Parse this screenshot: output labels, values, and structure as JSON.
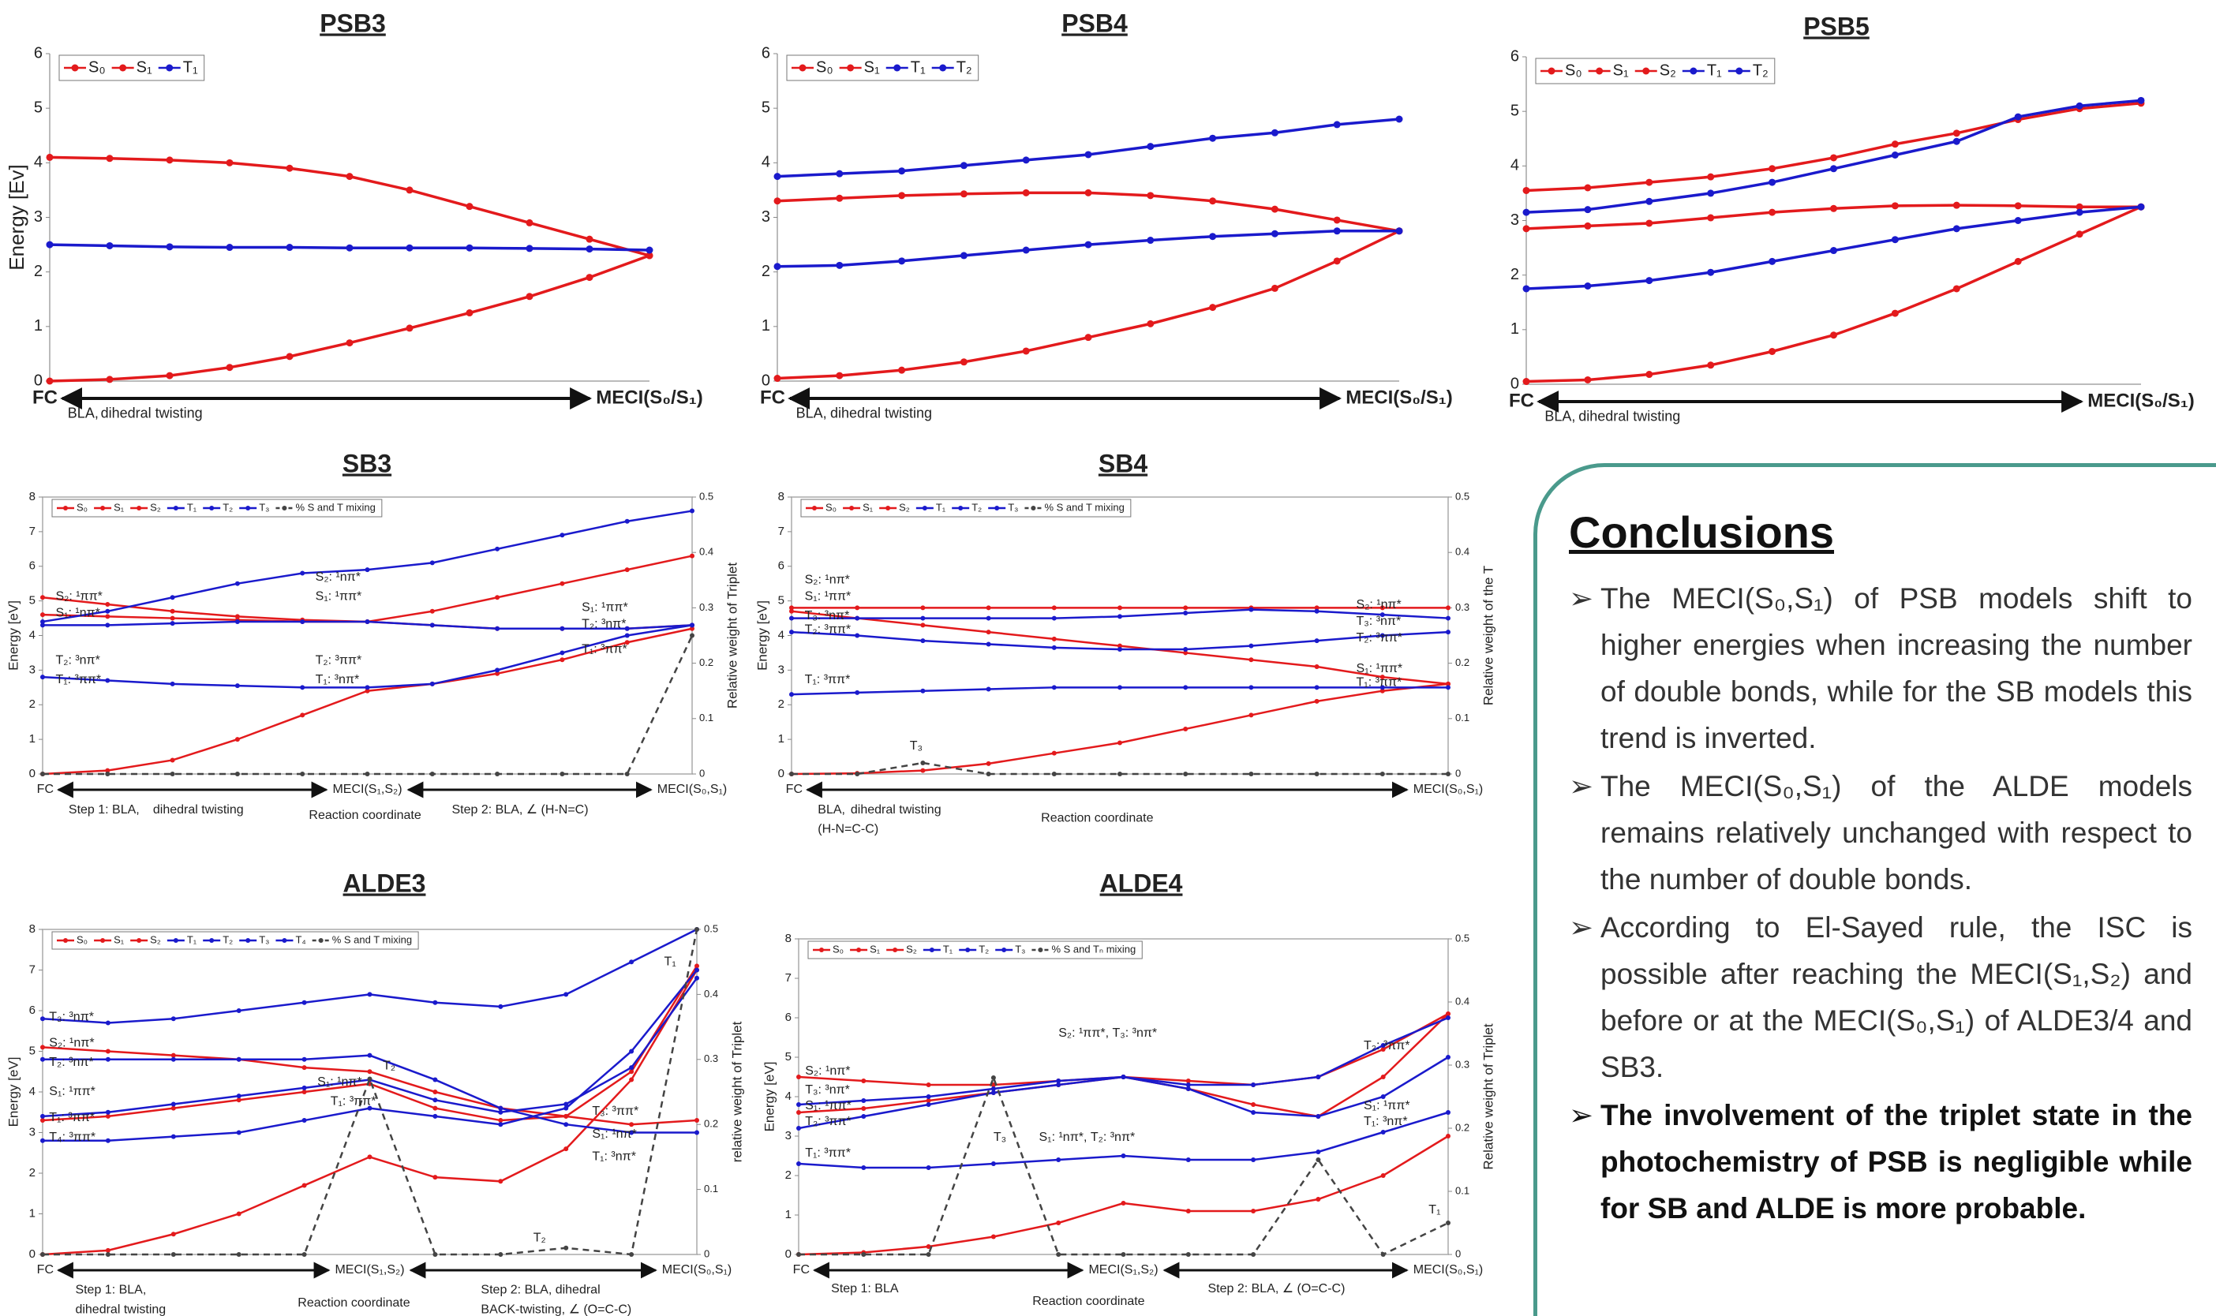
{
  "chart_data": [
    {
      "type": "line",
      "title": "PSB3",
      "y_label": "Energy [Ev]",
      "categories": [
        "FC",
        null,
        null,
        null,
        null,
        null,
        null,
        null,
        null,
        null,
        "MECI(S₀/S₁)"
      ],
      "ylim": [
        0,
        6
      ],
      "yticks": [
        0,
        1,
        2,
        3,
        4,
        5,
        6
      ],
      "series": [
        {
          "name": "S₀",
          "color": "#e31a1c",
          "values": [
            0,
            0.03,
            0.1,
            0.25,
            0.45,
            0.7,
            0.97,
            1.25,
            1.55,
            1.9,
            2.3
          ]
        },
        {
          "name": "S₁",
          "color": "#e31a1c",
          "values": [
            4.1,
            4.08,
            4.05,
            4.0,
            3.9,
            3.75,
            3.5,
            3.2,
            2.9,
            2.6,
            2.3
          ]
        },
        {
          "name": "T₁",
          "color": "#1a1acc",
          "values": [
            2.5,
            2.48,
            2.46,
            2.45,
            2.45,
            2.44,
            2.44,
            2.44,
            2.43,
            2.42,
            2.4
          ]
        }
      ],
      "annotations": [
        "BLA,",
        "dihedral twisting"
      ]
    },
    {
      "type": "line",
      "title": "PSB4",
      "categories": [
        "FC",
        null,
        null,
        null,
        null,
        null,
        null,
        null,
        null,
        null,
        "MECI(S₀/S₁)"
      ],
      "ylim": [
        0,
        6
      ],
      "yticks": [
        0,
        1,
        2,
        3,
        4,
        5,
        6
      ],
      "series": [
        {
          "name": "S₀",
          "color": "#e31a1c",
          "values": [
            0.05,
            0.1,
            0.2,
            0.35,
            0.55,
            0.8,
            1.05,
            1.35,
            1.7,
            2.2,
            2.75
          ]
        },
        {
          "name": "S₁",
          "color": "#e31a1c",
          "values": [
            3.3,
            3.35,
            3.4,
            3.43,
            3.45,
            3.45,
            3.4,
            3.3,
            3.15,
            2.95,
            2.75
          ]
        },
        {
          "name": "T₁",
          "color": "#1a1acc",
          "values": [
            2.1,
            2.12,
            2.2,
            2.3,
            2.4,
            2.5,
            2.58,
            2.65,
            2.7,
            2.75,
            2.75
          ]
        },
        {
          "name": "T₂",
          "color": "#1a1acc",
          "values": [
            3.75,
            3.8,
            3.85,
            3.95,
            4.05,
            4.15,
            4.3,
            4.45,
            4.55,
            4.7,
            4.8
          ]
        }
      ],
      "annotations": [
        "BLA,",
        "dihedral twisting"
      ]
    },
    {
      "type": "line",
      "title": "PSB5",
      "categories": [
        "FC",
        null,
        null,
        null,
        null,
        null,
        null,
        null,
        null,
        null,
        "MECI(S₀/S₁)"
      ],
      "ylim": [
        0,
        6
      ],
      "yticks": [
        0,
        1,
        2,
        3,
        4,
        5,
        6
      ],
      "series": [
        {
          "name": "S₀",
          "color": "#e31a1c",
          "values": [
            0.05,
            0.08,
            0.18,
            0.35,
            0.6,
            0.9,
            1.3,
            1.75,
            2.25,
            2.75,
            3.25
          ]
        },
        {
          "name": "S₁",
          "color": "#e31a1c",
          "values": [
            2.85,
            2.9,
            2.95,
            3.05,
            3.15,
            3.22,
            3.27,
            3.28,
            3.27,
            3.25,
            3.25
          ]
        },
        {
          "name": "S₂",
          "color": "#e31a1c",
          "values": [
            3.55,
            3.6,
            3.7,
            3.8,
            3.95,
            4.15,
            4.4,
            4.6,
            4.85,
            5.05,
            5.15
          ]
        },
        {
          "name": "T₁",
          "color": "#1a1acc",
          "values": [
            1.75,
            1.8,
            1.9,
            2.05,
            2.25,
            2.45,
            2.65,
            2.85,
            3.0,
            3.15,
            3.25
          ]
        },
        {
          "name": "T₂",
          "color": "#1a1acc",
          "values": [
            3.15,
            3.2,
            3.35,
            3.5,
            3.7,
            3.95,
            4.2,
            4.45,
            4.9,
            5.1,
            5.2
          ]
        }
      ],
      "annotations": [
        "BLA,",
        "dihedral twisting"
      ]
    },
    {
      "type": "line",
      "title": "SB3",
      "y_label": "Energy [eV]",
      "y2_label": "Relative weight of Triplet",
      "categories": [
        "FC",
        null,
        null,
        null,
        null,
        "MECI(S₁,S₂)",
        null,
        null,
        null,
        null,
        "MECI(S₀,S₁)"
      ],
      "ylim": [
        0,
        8
      ],
      "yticks": [
        0,
        1,
        2,
        3,
        4,
        5,
        6,
        7,
        8
      ],
      "y2lim": [
        0,
        0.5
      ],
      "y2ticks": [
        0,
        0.1,
        0.2,
        0.3,
        0.4,
        0.5
      ],
      "series": [
        {
          "name": "S₀",
          "color": "#e31a1c",
          "values": [
            0,
            0.1,
            0.4,
            1.0,
            1.7,
            2.4,
            2.6,
            2.9,
            3.3,
            3.8,
            4.2
          ]
        },
        {
          "name": "S₁",
          "color": "#e31a1c",
          "values": [
            4.6,
            4.55,
            4.5,
            4.45,
            4.4,
            4.4,
            4.3,
            4.2,
            4.2,
            4.2,
            4.3
          ]
        },
        {
          "name": "S₂",
          "color": "#e31a1c",
          "values": [
            5.1,
            4.9,
            4.7,
            4.55,
            4.45,
            4.4,
            4.7,
            5.1,
            5.5,
            5.9,
            6.3
          ]
        },
        {
          "name": "T₁",
          "color": "#1a1acc",
          "values": [
            2.8,
            2.7,
            2.6,
            2.55,
            2.5,
            2.5,
            2.6,
            3.0,
            3.5,
            4.0,
            4.3
          ]
        },
        {
          "name": "T₂",
          "color": "#1a1acc",
          "values": [
            4.3,
            4.3,
            4.35,
            4.4,
            4.4,
            4.4,
            4.3,
            4.2,
            4.2,
            4.2,
            4.3
          ]
        },
        {
          "name": "T₃",
          "color": "#1a1acc",
          "values": [
            4.4,
            4.7,
            5.1,
            5.5,
            5.8,
            5.9,
            6.1,
            6.5,
            6.9,
            7.3,
            7.6
          ]
        },
        {
          "name": "% S and T mixing",
          "color": "#444444",
          "axis": "y2",
          "dash": true,
          "values": [
            0,
            0,
            0,
            0,
            0,
            0,
            0,
            0,
            0,
            0,
            0.25
          ]
        }
      ],
      "annotations": [
        "S₂: ¹ππ*",
        "S₁: ¹nπ*",
        "T₂: ³nπ*",
        "T₁: ³ππ*",
        "S₂: ¹nπ*",
        "S₁: ¹ππ*",
        "T₂: ³ππ*",
        "T₁: ³nπ*",
        "S₁: ¹ππ*",
        "T₂: ³nπ*",
        "T₁: ³ππ*",
        "Step 1: BLA,",
        "dihedral twisting",
        "Reaction coordinate",
        "Step 2: BLA, ∠ (H-N=C)"
      ]
    },
    {
      "type": "line",
      "title": "SB4",
      "y_label": "Energy [eV]",
      "y2_label": "Relative weight of the T",
      "categories": [
        "FC",
        null,
        null,
        null,
        null,
        null,
        null,
        null,
        null,
        null,
        "MECI(S₀,S₁)"
      ],
      "ylim": [
        0,
        8
      ],
      "yticks": [
        0,
        1,
        2,
        3,
        4,
        5,
        6,
        7,
        8
      ],
      "y2lim": [
        0,
        0.5
      ],
      "y2ticks": [
        0,
        0.1,
        0.2,
        0.3,
        0.4,
        0.5
      ],
      "series": [
        {
          "name": "S₀",
          "color": "#e31a1c",
          "values": [
            0,
            0.02,
            0.1,
            0.3,
            0.6,
            0.9,
            1.3,
            1.7,
            2.1,
            2.4,
            2.6
          ]
        },
        {
          "name": "S₁",
          "color": "#e31a1c",
          "values": [
            4.7,
            4.5,
            4.3,
            4.1,
            3.9,
            3.7,
            3.5,
            3.3,
            3.1,
            2.8,
            2.6
          ]
        },
        {
          "name": "S₂",
          "color": "#e31a1c",
          "values": [
            4.8,
            4.8,
            4.8,
            4.8,
            4.8,
            4.8,
            4.8,
            4.8,
            4.8,
            4.8,
            4.8
          ]
        },
        {
          "name": "T₁",
          "color": "#1a1acc",
          "values": [
            2.3,
            2.35,
            2.4,
            2.45,
            2.5,
            2.5,
            2.5,
            2.5,
            2.5,
            2.5,
            2.5
          ]
        },
        {
          "name": "T₂",
          "color": "#1a1acc",
          "values": [
            4.1,
            4.0,
            3.85,
            3.75,
            3.65,
            3.6,
            3.6,
            3.7,
            3.85,
            4.0,
            4.1
          ]
        },
        {
          "name": "T₃",
          "color": "#1a1acc",
          "values": [
            4.5,
            4.5,
            4.5,
            4.5,
            4.5,
            4.55,
            4.65,
            4.75,
            4.7,
            4.6,
            4.5
          ]
        },
        {
          "name": "% S and T mixing",
          "color": "#444444",
          "axis": "y2",
          "dash": true,
          "values": [
            0,
            0,
            0.02,
            0,
            0,
            0,
            0,
            0,
            0,
            0,
            0
          ]
        }
      ],
      "annotations": [
        "S₂: ¹nπ*",
        "S₁: ¹ππ*",
        "T₃: ³nπ*",
        "T₂: ³ππ*",
        "T₁: ³ππ*",
        "S₂: ¹nπ*",
        "T₃: ³nπ*",
        "T₂: ³ππ*",
        "S₁: ¹ππ*",
        "T₁: ³ππ*",
        "BLA,",
        "dihedral twisting",
        "(H-N=C-C)",
        "Reaction coordinate",
        "T₃"
      ]
    },
    {
      "type": "line",
      "title": "ALDE3",
      "y_label": "Energy [eV]",
      "y2_label": "relative weight of Triplet",
      "categories": [
        "FC",
        null,
        null,
        null,
        null,
        "MECI(S₁,S₂)",
        null,
        null,
        null,
        null,
        "MECI(S₀,S₁)"
      ],
      "ylim": [
        0,
        8
      ],
      "yticks": [
        0,
        1,
        2,
        3,
        4,
        5,
        6,
        7,
        8
      ],
      "y2lim": [
        0,
        0.5
      ],
      "y2ticks": [
        0,
        0.1,
        0.2,
        0.3,
        0.4,
        0.5
      ],
      "series": [
        {
          "name": "S₀",
          "color": "#e31a1c",
          "values": [
            0,
            0.1,
            0.5,
            1.0,
            1.7,
            2.4,
            1.9,
            1.8,
            2.6,
            4.3,
            7.0
          ]
        },
        {
          "name": "S₁",
          "color": "#e31a1c",
          "values": [
            3.3,
            3.4,
            3.6,
            3.8,
            4.0,
            4.2,
            3.6,
            3.3,
            3.4,
            4.5,
            7.1
          ]
        },
        {
          "name": "S₂",
          "color": "#e31a1c",
          "values": [
            5.1,
            5.0,
            4.9,
            4.8,
            4.6,
            4.5,
            4.0,
            3.6,
            3.4,
            3.2,
            3.3
          ]
        },
        {
          "name": "T₁",
          "color": "#1a1acc",
          "values": [
            2.8,
            2.8,
            2.9,
            3.0,
            3.3,
            3.6,
            3.4,
            3.2,
            3.6,
            5.0,
            7.0
          ]
        },
        {
          "name": "T₂",
          "color": "#1a1acc",
          "values": [
            4.8,
            4.8,
            4.8,
            4.8,
            4.8,
            4.9,
            4.3,
            3.6,
            3.2,
            3.0,
            3.0
          ]
        },
        {
          "name": "T₃",
          "color": "#1a1acc",
          "values": [
            5.8,
            5.7,
            5.8,
            6.0,
            6.2,
            6.4,
            6.2,
            6.1,
            6.4,
            7.2,
            8.0
          ]
        },
        {
          "name": "T₄",
          "color": "#1a1acc",
          "values": [
            3.4,
            3.5,
            3.7,
            3.9,
            4.1,
            4.3,
            3.8,
            3.5,
            3.7,
            4.6,
            6.8
          ]
        },
        {
          "name": "% S and T mixing",
          "color": "#444444",
          "axis": "y2",
          "dash": true,
          "values": [
            0,
            0,
            0,
            0,
            0,
            0.27,
            0,
            0,
            0.01,
            0,
            0.5
          ]
        }
      ],
      "annotations": [
        "T₃: ³nπ*",
        "S₂: ¹nπ*",
        "T₂: ³nπ*",
        "S₁: ¹ππ*",
        "T₁: ³ππ*",
        "T₄: ³ππ*",
        "T₂",
        "S₁: ¹nπ*",
        "T₁: ³ππ*",
        "T₃: ³ππ*",
        "S₁: ¹nπ*",
        "T₁: ³nπ*",
        "T₁",
        "T₂",
        "Step 1: BLA,",
        "dihedral twisting",
        "Reaction coordinate",
        "Step 2: BLA, dihedral",
        "BACK-twisting, ∠ (O=C-C)"
      ]
    },
    {
      "type": "line",
      "title": "ALDE4",
      "y_label": "Energy [eV]",
      "y2_label": "Relative weight of Triplet",
      "categories": [
        "FC",
        null,
        null,
        null,
        null,
        "MECI(S₁,S₂)",
        null,
        null,
        null,
        null,
        "MECI(S₀,S₁)"
      ],
      "ylim": [
        0,
        8
      ],
      "yticks": [
        0,
        1,
        2,
        3,
        4,
        5,
        6,
        7,
        8
      ],
      "y2lim": [
        0,
        0.5
      ],
      "y2ticks": [
        0,
        0.1,
        0.2,
        0.3,
        0.4,
        0.5
      ],
      "series": [
        {
          "name": "S₀",
          "color": "#e31a1c",
          "values": [
            0,
            0.05,
            0.2,
            0.45,
            0.8,
            1.3,
            1.1,
            1.1,
            1.4,
            2.0,
            3.0
          ]
        },
        {
          "name": "S₁",
          "color": "#e31a1c",
          "values": [
            3.6,
            3.7,
            3.9,
            4.1,
            4.3,
            4.5,
            4.2,
            3.8,
            3.5,
            4.5,
            6.1
          ]
        },
        {
          "name": "S₂",
          "color": "#e31a1c",
          "values": [
            4.5,
            4.4,
            4.3,
            4.3,
            4.4,
            4.5,
            4.4,
            4.3,
            4.5,
            5.2,
            6.1
          ]
        },
        {
          "name": "T₁",
          "color": "#1a1acc",
          "values": [
            2.3,
            2.2,
            2.2,
            2.3,
            2.4,
            2.5,
            2.4,
            2.4,
            2.6,
            3.1,
            3.6
          ]
        },
        {
          "name": "T₂",
          "color": "#1a1acc",
          "values": [
            3.2,
            3.5,
            3.8,
            4.1,
            4.3,
            4.5,
            4.2,
            3.6,
            3.5,
            4.0,
            5.0
          ]
        },
        {
          "name": "T₃",
          "color": "#1a1acc",
          "values": [
            3.8,
            3.9,
            4.0,
            4.2,
            4.4,
            4.5,
            4.3,
            4.3,
            4.5,
            5.3,
            6.0
          ]
        },
        {
          "name": "% S and Tₙ mixing",
          "color": "#444444",
          "axis": "y2",
          "dash": true,
          "values": [
            0,
            0,
            0,
            0.28,
            0,
            0,
            0,
            0,
            0.15,
            0,
            0.05
          ]
        }
      ],
      "annotations": [
        "S₂: ¹nπ*",
        "T₃: ³nπ*",
        "S₁: ¹ππ*",
        "T₂: ³ππ*",
        "T₁: ³ππ*",
        "S₂: ¹ππ*, T₃: ³nπ*",
        "T₃",
        "S₁: ¹nπ*, T₂: ³nπ*",
        "T₂: ³ππ*",
        "S₁: ¹ππ*",
        "T₁: ³nπ*",
        "T₁",
        "Step 1: BLA",
        "Reaction coordinate",
        "Step 2: BLA, ∠ (O=C-C)"
      ]
    }
  ],
  "conclusions": {
    "title": "Conclusions",
    "items": [
      "The MECI(S₀,S₁) of PSB models shift to higher energies when increasing the number of double bonds, while for the SB models this trend is inverted.",
      "The MECI(S₀,S₁) of the ALDE models remains relatively unchanged with respect to the number of double bonds.",
      "According to El-Sayed rule, the ISC is possible after reaching the MECI(S₁,S₂) and before or at the MECI(S₀,S₁) of ALDE3/4 and SB3.",
      "The involvement of the triplet state in the photochemistry of PSB is negligible while for SB and ALDE is more probable."
    ]
  }
}
